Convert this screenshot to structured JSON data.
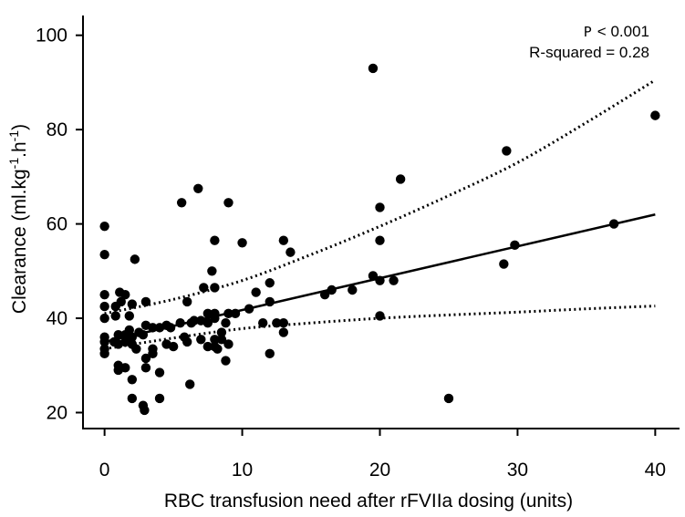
{
  "chart_data": {
    "type": "scatter",
    "title": "",
    "xlabel": "RBC transfusion need after rFVIIa dosing (units)",
    "ylabel_main": "Clearance (ml.kg",
    "ylabel_sup1": "-1",
    "ylabel_mid": ".h",
    "ylabel_sup2": "-1",
    "ylabel_end": ")",
    "xlim": [
      -1.5,
      41.5
    ],
    "ylim": [
      17,
      104
    ],
    "xticks": [
      0,
      10,
      20,
      30,
      40
    ],
    "yticks": [
      20,
      40,
      60,
      80,
      100
    ],
    "annotations": {
      "p_prefix": "P",
      "p_value": "< 0.001",
      "r_squared": "R-squared =  0.28"
    },
    "points": [
      {
        "x": 0.0,
        "y": 59.5
      },
      {
        "x": 0.0,
        "y": 53.5
      },
      {
        "x": 0.0,
        "y": 45.0
      },
      {
        "x": 0.0,
        "y": 42.5
      },
      {
        "x": 0.0,
        "y": 40.0
      },
      {
        "x": 0.0,
        "y": 36.0
      },
      {
        "x": 0.0,
        "y": 35.0
      },
      {
        "x": 0.0,
        "y": 33.5
      },
      {
        "x": 0.0,
        "y": 32.5
      },
      {
        "x": 0.7,
        "y": 35.0
      },
      {
        "x": 0.8,
        "y": 42.5
      },
      {
        "x": 0.8,
        "y": 40.5
      },
      {
        "x": 1.0,
        "y": 36.5
      },
      {
        "x": 1.0,
        "y": 34.5
      },
      {
        "x": 1.0,
        "y": 30.0
      },
      {
        "x": 1.0,
        "y": 29.0
      },
      {
        "x": 1.1,
        "y": 45.5
      },
      {
        "x": 1.2,
        "y": 43.5
      },
      {
        "x": 1.5,
        "y": 45.0
      },
      {
        "x": 1.5,
        "y": 36.5
      },
      {
        "x": 1.5,
        "y": 35.0
      },
      {
        "x": 1.5,
        "y": 29.5
      },
      {
        "x": 1.8,
        "y": 40.5
      },
      {
        "x": 1.8,
        "y": 37.5
      },
      {
        "x": 2.0,
        "y": 43.0
      },
      {
        "x": 2.0,
        "y": 36.0
      },
      {
        "x": 2.0,
        "y": 34.5
      },
      {
        "x": 2.0,
        "y": 27.0
      },
      {
        "x": 2.0,
        "y": 23.0
      },
      {
        "x": 2.2,
        "y": 52.5
      },
      {
        "x": 2.3,
        "y": 33.5
      },
      {
        "x": 2.5,
        "y": 37.0
      },
      {
        "x": 2.8,
        "y": 36.5
      },
      {
        "x": 2.8,
        "y": 21.5
      },
      {
        "x": 2.9,
        "y": 20.5
      },
      {
        "x": 3.0,
        "y": 43.5
      },
      {
        "x": 3.0,
        "y": 38.5
      },
      {
        "x": 3.0,
        "y": 31.5
      },
      {
        "x": 3.0,
        "y": 29.5
      },
      {
        "x": 3.5,
        "y": 38.0
      },
      {
        "x": 3.5,
        "y": 33.5
      },
      {
        "x": 3.5,
        "y": 32.5
      },
      {
        "x": 4.0,
        "y": 38.0
      },
      {
        "x": 4.0,
        "y": 28.5
      },
      {
        "x": 4.0,
        "y": 23.0
      },
      {
        "x": 4.5,
        "y": 38.5
      },
      {
        "x": 4.5,
        "y": 34.5
      },
      {
        "x": 4.8,
        "y": 38.0
      },
      {
        "x": 5.0,
        "y": 34.0
      },
      {
        "x": 5.5,
        "y": 39.0
      },
      {
        "x": 5.6,
        "y": 64.5
      },
      {
        "x": 5.8,
        "y": 36.0
      },
      {
        "x": 6.0,
        "y": 43.5
      },
      {
        "x": 6.0,
        "y": 35.0
      },
      {
        "x": 6.2,
        "y": 26.0
      },
      {
        "x": 6.3,
        "y": 39.0
      },
      {
        "x": 6.5,
        "y": 39.5
      },
      {
        "x": 6.8,
        "y": 67.5
      },
      {
        "x": 7.0,
        "y": 39.5
      },
      {
        "x": 7.0,
        "y": 35.5
      },
      {
        "x": 7.2,
        "y": 46.5
      },
      {
        "x": 7.5,
        "y": 41.0
      },
      {
        "x": 7.5,
        "y": 39.0
      },
      {
        "x": 7.5,
        "y": 34.0
      },
      {
        "x": 7.8,
        "y": 50.0
      },
      {
        "x": 8.0,
        "y": 56.5
      },
      {
        "x": 8.0,
        "y": 46.5
      },
      {
        "x": 8.0,
        "y": 41.0
      },
      {
        "x": 8.0,
        "y": 40.0
      },
      {
        "x": 8.0,
        "y": 35.5
      },
      {
        "x": 8.0,
        "y": 34.0
      },
      {
        "x": 8.2,
        "y": 33.5
      },
      {
        "x": 8.5,
        "y": 37.0
      },
      {
        "x": 8.5,
        "y": 35.5
      },
      {
        "x": 8.8,
        "y": 39.0
      },
      {
        "x": 8.8,
        "y": 31.0
      },
      {
        "x": 9.0,
        "y": 64.5
      },
      {
        "x": 9.0,
        "y": 41.0
      },
      {
        "x": 9.0,
        "y": 34.5
      },
      {
        "x": 9.5,
        "y": 41.0
      },
      {
        "x": 10.0,
        "y": 56.0
      },
      {
        "x": 10.5,
        "y": 42.0
      },
      {
        "x": 11.0,
        "y": 45.5
      },
      {
        "x": 11.5,
        "y": 39.0
      },
      {
        "x": 12.0,
        "y": 47.5
      },
      {
        "x": 12.0,
        "y": 43.5
      },
      {
        "x": 12.0,
        "y": 32.5
      },
      {
        "x": 12.5,
        "y": 39.0
      },
      {
        "x": 13.0,
        "y": 56.5
      },
      {
        "x": 13.0,
        "y": 39.0
      },
      {
        "x": 13.0,
        "y": 37.0
      },
      {
        "x": 13.5,
        "y": 54.0
      },
      {
        "x": 16.0,
        "y": 45.0
      },
      {
        "x": 16.5,
        "y": 46.0
      },
      {
        "x": 18.0,
        "y": 46.0
      },
      {
        "x": 19.5,
        "y": 93.0
      },
      {
        "x": 19.5,
        "y": 49.0
      },
      {
        "x": 20.0,
        "y": 63.5
      },
      {
        "x": 20.0,
        "y": 56.5
      },
      {
        "x": 20.0,
        "y": 48.0
      },
      {
        "x": 20.0,
        "y": 40.5
      },
      {
        "x": 21.0,
        "y": 48.0
      },
      {
        "x": 21.5,
        "y": 69.5
      },
      {
        "x": 25.0,
        "y": 23.0
      },
      {
        "x": 29.0,
        "y": 51.5
      },
      {
        "x": 29.2,
        "y": 75.5
      },
      {
        "x": 29.8,
        "y": 55.5
      },
      {
        "x": 37.0,
        "y": 60.0
      },
      {
        "x": 40.0,
        "y": 83.0
      }
    ],
    "fit_line": {
      "x": [
        0,
        40
      ],
      "y": [
        35.0,
        62.0
      ]
    },
    "ci_upper": {
      "x": [
        0,
        5,
        10,
        15,
        20,
        25,
        30,
        35,
        40
      ],
      "y": [
        41.0,
        44.0,
        48.0,
        53.5,
        59.5,
        66.0,
        73.0,
        81.5,
        90.5
      ]
    },
    "ci_lower": {
      "x": [
        0,
        5,
        10,
        15,
        20,
        25,
        30,
        35,
        40
      ],
      "y": [
        33.5,
        35.8,
        37.8,
        39.0,
        40.0,
        40.7,
        41.3,
        42.0,
        42.6
      ]
    }
  }
}
